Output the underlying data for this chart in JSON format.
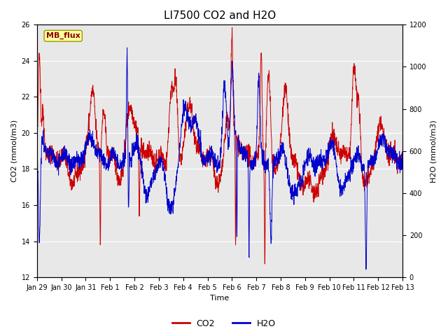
{
  "title": "LI7500 CO2 and H2O",
  "xlabel": "Time",
  "ylabel_left": "CO2 (mmol/m3)",
  "ylabel_right": "H2O (mmol/m3)",
  "ylim_left": [
    12,
    26
  ],
  "ylim_right": [
    0,
    1200
  ],
  "yticks_left": [
    12,
    14,
    16,
    18,
    20,
    22,
    24,
    26
  ],
  "yticks_right": [
    0,
    200,
    400,
    600,
    800,
    1000,
    1200
  ],
  "co2_color": "#CC0000",
  "h2o_color": "#0000CC",
  "legend_co2": "CO2",
  "legend_h2o": "H2O",
  "watermark_text": "MB_flux",
  "watermark_fgcolor": "#8B0000",
  "watermark_bgcolor": "#FFFFA0",
  "background_color": "#E8E8E8",
  "title_fontsize": 11,
  "axis_label_fontsize": 8,
  "tick_fontsize": 7,
  "legend_fontsize": 9,
  "n_points": 2000,
  "seed": 42
}
